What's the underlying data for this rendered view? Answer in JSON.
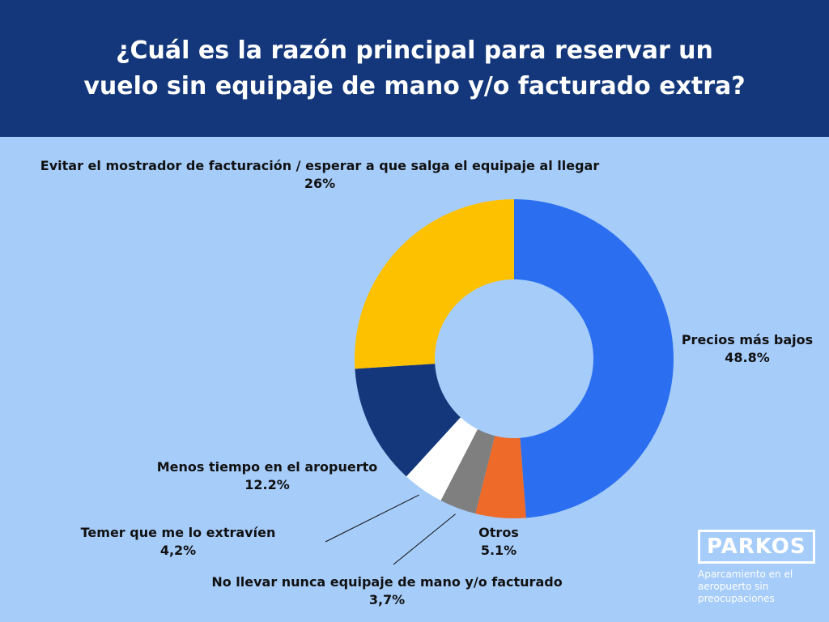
{
  "title_line1": "¿Cuál es la razón principal para reservar un",
  "title_line2": "vuelo sin equipaje de mano y/o facturado extra?",
  "colors": {
    "header_bg": "#13377a",
    "background": "#a6ccfa",
    "precios": "#2b6ff0",
    "otros": "#ee6a28",
    "no_llevar": "#7f7f7f",
    "temer": "#ffffff",
    "menos_tiempo": "#13377a",
    "evitar": "#fec100"
  },
  "chart_data": {
    "type": "pie",
    "donut": true,
    "slices": [
      {
        "name": "Precios más bajos",
        "value": 48.8,
        "label": "48.8%",
        "color": "#2b6ff0"
      },
      {
        "name": "Otros",
        "value": 5.1,
        "label": "5.1%",
        "color": "#ee6a28"
      },
      {
        "name": "No llevar nunca equipaje de mano y/o facturado",
        "value": 3.7,
        "label": "3,7%",
        "color": "#7f7f7f"
      },
      {
        "name": "Temer que me lo extravíen",
        "value": 4.2,
        "label": "4,2%",
        "color": "#ffffff"
      },
      {
        "name": "Menos tiempo en el aropuerto",
        "value": 12.2,
        "label": "12.2%",
        "color": "#13377a"
      },
      {
        "name": "Evitar el mostrador de facturación / esperar a que salga el equipaje al llegar",
        "value": 26,
        "label": "26%",
        "color": "#fec100"
      }
    ]
  },
  "logo": {
    "name": "PARKOS",
    "tagline_1": "Aparcamiento en el",
    "tagline_2": "aeropuerto sin",
    "tagline_3": "preocupaciones"
  }
}
